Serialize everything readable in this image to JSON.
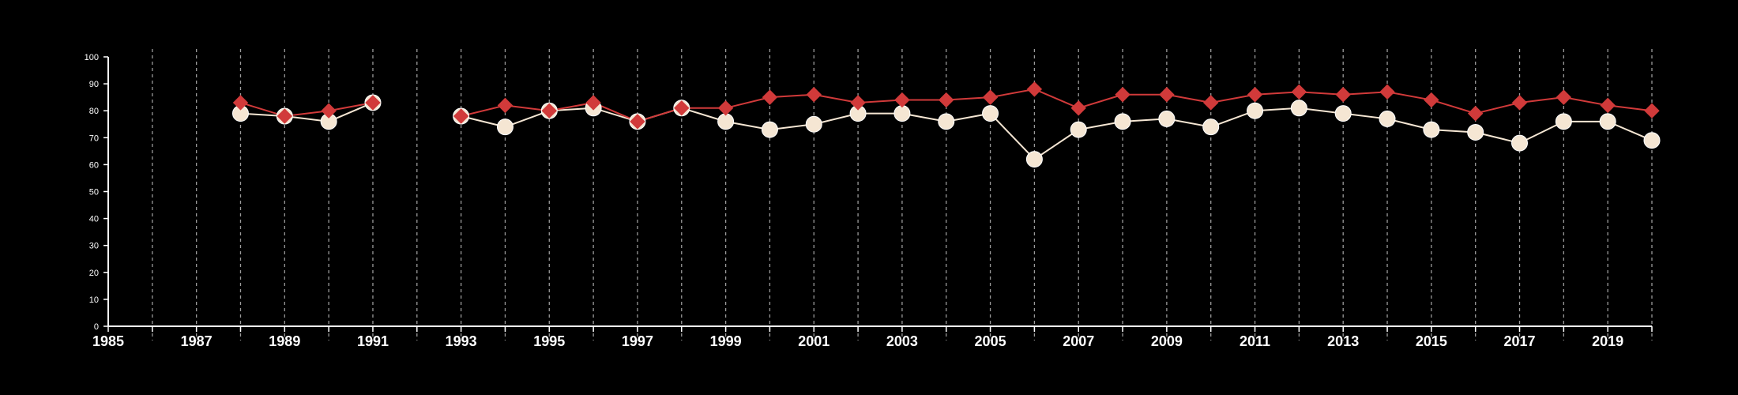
{
  "chart_data": {
    "type": "line",
    "title": "",
    "xlabel": "",
    "ylabel": "",
    "xlim": [
      1985,
      2020
    ],
    "ylim": [
      0,
      100
    ],
    "y_ticks": [
      0,
      10,
      20,
      30,
      40,
      50,
      60,
      70,
      80,
      90,
      100
    ],
    "x_ticks": [
      1985,
      1987,
      1989,
      1991,
      1993,
      1995,
      1997,
      1999,
      2001,
      2003,
      2005,
      2007,
      2009,
      2011,
      2013,
      2015,
      2017,
      2019
    ],
    "x_tick_labels": [
      "1985",
      "1987",
      "1989",
      "1991",
      "1993",
      "1995",
      "1997",
      "1999",
      "2001",
      "2003",
      "2005",
      "2007",
      "2009",
      "2011",
      "2013",
      "2015",
      "2017",
      "2019"
    ],
    "vertical_gridlines": "dashed, every year",
    "legend": "none",
    "series": [
      {
        "color": "#f5e6d3",
        "marker": "circle",
        "x": [
          1988,
          1989,
          1990,
          1991,
          1993,
          1994,
          1995,
          1996,
          1997,
          1998,
          1999,
          2000,
          2001,
          2002,
          2003,
          2004,
          2005,
          2006,
          2007,
          2008,
          2009,
          2010,
          2011,
          2012,
          2013,
          2014,
          2015,
          2016,
          2017,
          2018,
          2019,
          2020
        ],
        "values": [
          79,
          78,
          76,
          83,
          78,
          74,
          80,
          81,
          76,
          81,
          76,
          73,
          75,
          79,
          79,
          76,
          79,
          62,
          73,
          76,
          77,
          74,
          80,
          81,
          79,
          77,
          73,
          72,
          68,
          76,
          76,
          69
        ]
      },
      {
        "color": "#d13a3a",
        "marker": "diamond",
        "x": [
          1988,
          1989,
          1990,
          1991,
          1993,
          1994,
          1995,
          1996,
          1997,
          1998,
          1999,
          2000,
          2001,
          2002,
          2003,
          2004,
          2005,
          2006,
          2007,
          2008,
          2009,
          2010,
          2011,
          2012,
          2013,
          2014,
          2015,
          2016,
          2017,
          2018,
          2019,
          2020
        ],
        "values": [
          83,
          78,
          80,
          83,
          78,
          82,
          80,
          83,
          76,
          81,
          81,
          85,
          86,
          83,
          84,
          84,
          85,
          88,
          81,
          86,
          86,
          83,
          86,
          87,
          86,
          87,
          84,
          79,
          83,
          85,
          82,
          80
        ]
      }
    ]
  }
}
